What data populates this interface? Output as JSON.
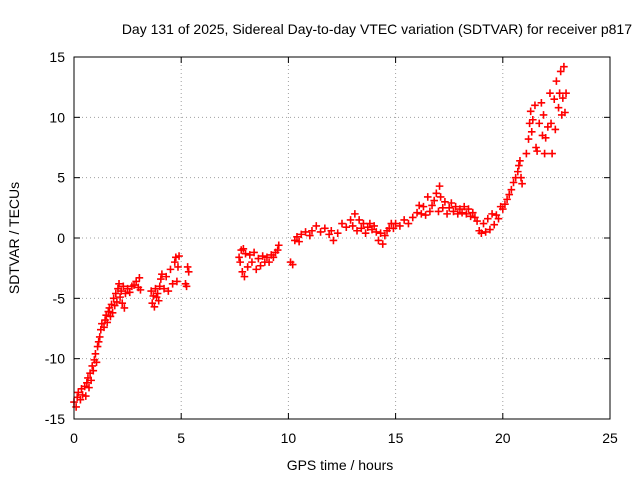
{
  "chart_data": {
    "type": "scatter",
    "title": "Day 131 of 2025, Sidereal Day-to-day VTEC variation (SDTVAR) for receiver p817",
    "xlabel": "GPS time / hours",
    "ylabel": "SDTVAR / TECUs",
    "xlim": [
      0,
      25
    ],
    "ylim": [
      -15,
      15
    ],
    "xticks": [
      0,
      5,
      10,
      15,
      20,
      25
    ],
    "yticks": [
      -15,
      -10,
      -5,
      0,
      5,
      10,
      15
    ],
    "grid": true,
    "marker": "plus",
    "color": "#ff0000",
    "series": [
      {
        "points": [
          [
            0.0,
            -13.6
          ],
          [
            0.1,
            -14.0
          ],
          [
            0.15,
            -13.2
          ],
          [
            0.2,
            -12.8
          ],
          [
            0.3,
            -13.4
          ],
          [
            0.35,
            -12.5
          ],
          [
            0.4,
            -13.0
          ],
          [
            0.5,
            -12.3
          ],
          [
            0.55,
            -13.1
          ],
          [
            0.6,
            -12.0
          ],
          [
            0.65,
            -11.6
          ],
          [
            0.7,
            -12.4
          ],
          [
            0.75,
            -11.2
          ],
          [
            0.8,
            -11.8
          ],
          [
            0.85,
            -10.6
          ],
          [
            0.9,
            -11.0
          ],
          [
            0.95,
            -10.1
          ],
          [
            1.0,
            -9.6
          ],
          [
            1.05,
            -10.3
          ],
          [
            1.1,
            -9.0
          ],
          [
            1.15,
            -8.6
          ],
          [
            1.2,
            -8.2
          ],
          [
            1.25,
            -7.6
          ],
          [
            1.3,
            -7.1
          ],
          [
            1.4,
            -7.4
          ],
          [
            1.45,
            -6.8
          ],
          [
            1.5,
            -6.4
          ],
          [
            1.55,
            -7.0
          ],
          [
            1.6,
            -6.1
          ],
          [
            1.65,
            -5.8
          ],
          [
            1.7,
            -6.5
          ],
          [
            1.75,
            -5.5
          ],
          [
            1.8,
            -6.2
          ],
          [
            1.85,
            -5.0
          ],
          [
            1.9,
            -5.6
          ],
          [
            1.95,
            -4.6
          ],
          [
            2.0,
            -5.3
          ],
          [
            2.05,
            -4.2
          ],
          [
            2.1,
            -3.8
          ],
          [
            2.15,
            -4.9
          ],
          [
            2.2,
            -4.4
          ],
          [
            2.25,
            -5.4
          ],
          [
            2.3,
            -4.0
          ],
          [
            2.35,
            -5.8
          ],
          [
            2.4,
            -4.6
          ],
          [
            2.5,
            -4.2
          ],
          [
            2.6,
            -4.5
          ],
          [
            2.7,
            -4.0
          ],
          [
            2.8,
            -3.9
          ],
          [
            2.9,
            -3.6
          ],
          [
            3.0,
            -4.1
          ],
          [
            3.05,
            -3.3
          ],
          [
            3.1,
            -4.3
          ],
          [
            3.6,
            -4.4
          ],
          [
            3.65,
            -5.4
          ],
          [
            3.7,
            -4.8
          ],
          [
            3.75,
            -5.7
          ],
          [
            3.8,
            -4.2
          ],
          [
            3.85,
            -4.9
          ],
          [
            3.9,
            -4.6
          ],
          [
            3.95,
            -5.2
          ],
          [
            4.0,
            -4.0
          ],
          [
            4.05,
            -3.4
          ],
          [
            4.1,
            -3.0
          ],
          [
            4.2,
            -4.2
          ],
          [
            4.3,
            -3.2
          ],
          [
            4.4,
            -4.4
          ],
          [
            4.5,
            -2.6
          ],
          [
            4.6,
            -3.8
          ],
          [
            4.7,
            -2.0
          ],
          [
            4.75,
            -1.6
          ],
          [
            4.8,
            -3.6
          ],
          [
            4.85,
            -2.4
          ],
          [
            4.9,
            -1.5
          ],
          [
            5.2,
            -3.8
          ],
          [
            5.25,
            -4.0
          ],
          [
            5.3,
            -2.4
          ],
          [
            5.35,
            -2.8
          ],
          [
            7.7,
            -1.6
          ],
          [
            7.75,
            -2.0
          ],
          [
            7.8,
            -1.0
          ],
          [
            7.85,
            -2.8
          ],
          [
            7.9,
            -0.9
          ],
          [
            7.95,
            -3.2
          ],
          [
            8.0,
            -1.3
          ],
          [
            8.1,
            -2.4
          ],
          [
            8.2,
            -1.4
          ],
          [
            8.3,
            -2.0
          ],
          [
            8.4,
            -1.2
          ],
          [
            8.5,
            -2.6
          ],
          [
            8.6,
            -1.7
          ],
          [
            8.7,
            -2.3
          ],
          [
            8.8,
            -1.5
          ],
          [
            8.9,
            -2.0
          ],
          [
            9.0,
            -1.6
          ],
          [
            9.1,
            -2.0
          ],
          [
            9.2,
            -1.4
          ],
          [
            9.3,
            -1.6
          ],
          [
            9.4,
            -1.2
          ],
          [
            9.5,
            -1.0
          ],
          [
            9.55,
            -0.6
          ],
          [
            10.1,
            -2.0
          ],
          [
            10.2,
            -2.2
          ],
          [
            10.3,
            -0.2
          ],
          [
            10.4,
            0.1
          ],
          [
            10.5,
            -0.3
          ],
          [
            10.6,
            0.3
          ],
          [
            10.8,
            0.5
          ],
          [
            11.0,
            0.2
          ],
          [
            11.1,
            0.6
          ],
          [
            11.3,
            1.0
          ],
          [
            11.5,
            0.5
          ],
          [
            11.7,
            0.8
          ],
          [
            11.9,
            0.3
          ],
          [
            12.0,
            0.6
          ],
          [
            12.1,
            -0.2
          ],
          [
            12.3,
            0.4
          ],
          [
            12.5,
            1.2
          ],
          [
            12.7,
            0.9
          ],
          [
            12.9,
            1.5
          ],
          [
            13.0,
            1.0
          ],
          [
            13.1,
            2.0
          ],
          [
            13.2,
            0.6
          ],
          [
            13.3,
            1.5
          ],
          [
            13.4,
            0.8
          ],
          [
            13.5,
            1.2
          ],
          [
            13.6,
            0.4
          ],
          [
            13.7,
            0.9
          ],
          [
            13.8,
            1.2
          ],
          [
            13.9,
            0.7
          ],
          [
            14.0,
            1.0
          ],
          [
            14.1,
            0.5
          ],
          [
            14.2,
            -0.2
          ],
          [
            14.3,
            0.4
          ],
          [
            14.4,
            -0.5
          ],
          [
            14.5,
            0.2
          ],
          [
            14.6,
            0.6
          ],
          [
            14.7,
            0.8
          ],
          [
            14.8,
            1.2
          ],
          [
            14.9,
            0.8
          ],
          [
            15.0,
            1.2
          ],
          [
            15.2,
            1.0
          ],
          [
            15.4,
            1.5
          ],
          [
            15.6,
            1.2
          ],
          [
            15.8,
            1.7
          ],
          [
            16.0,
            2.1
          ],
          [
            16.1,
            2.7
          ],
          [
            16.2,
            2.0
          ],
          [
            16.3,
            2.6
          ],
          [
            16.4,
            1.9
          ],
          [
            16.5,
            3.4
          ],
          [
            16.6,
            2.2
          ],
          [
            16.7,
            2.7
          ],
          [
            16.8,
            3.1
          ],
          [
            16.9,
            3.7
          ],
          [
            17.0,
            2.2
          ],
          [
            17.05,
            4.3
          ],
          [
            17.1,
            3.4
          ],
          [
            17.2,
            2.5
          ],
          [
            17.3,
            3.0
          ],
          [
            17.4,
            2.0
          ],
          [
            17.5,
            2.5
          ],
          [
            17.6,
            2.9
          ],
          [
            17.7,
            2.2
          ],
          [
            17.8,
            2.6
          ],
          [
            17.9,
            2.0
          ],
          [
            18.0,
            2.4
          ],
          [
            18.1,
            2.1
          ],
          [
            18.2,
            2.6
          ],
          [
            18.3,
            2.0
          ],
          [
            18.4,
            2.4
          ],
          [
            18.5,
            1.8
          ],
          [
            18.6,
            2.1
          ],
          [
            18.7,
            1.7
          ],
          [
            18.8,
            1.4
          ],
          [
            18.9,
            0.6
          ],
          [
            19.0,
            0.4
          ],
          [
            19.1,
            1.2
          ],
          [
            19.2,
            0.5
          ],
          [
            19.3,
            1.6
          ],
          [
            19.4,
            0.7
          ],
          [
            19.5,
            2.0
          ],
          [
            19.6,
            1.1
          ],
          [
            19.7,
            1.9
          ],
          [
            19.8,
            1.6
          ],
          [
            19.9,
            2.6
          ],
          [
            20.0,
            2.4
          ],
          [
            20.1,
            2.8
          ],
          [
            20.2,
            3.2
          ],
          [
            20.3,
            3.6
          ],
          [
            20.4,
            4.0
          ],
          [
            20.5,
            4.6
          ],
          [
            20.6,
            5.0
          ],
          [
            20.7,
            5.5
          ],
          [
            20.75,
            6.0
          ],
          [
            20.8,
            6.4
          ],
          [
            20.85,
            5.0
          ],
          [
            20.9,
            4.5
          ],
          [
            21.1,
            7.0
          ],
          [
            21.2,
            8.2
          ],
          [
            21.25,
            9.5
          ],
          [
            21.3,
            10.5
          ],
          [
            21.35,
            8.8
          ],
          [
            21.4,
            9.8
          ],
          [
            21.5,
            11.0
          ],
          [
            21.55,
            7.5
          ],
          [
            21.6,
            7.2
          ],
          [
            21.7,
            9.5
          ],
          [
            21.8,
            11.2
          ],
          [
            21.85,
            8.5
          ],
          [
            21.9,
            10.2
          ],
          [
            21.95,
            7.0
          ],
          [
            22.0,
            8.3
          ],
          [
            22.1,
            9.2
          ],
          [
            22.2,
            12.0
          ],
          [
            22.25,
            9.5
          ],
          [
            22.3,
            7.0
          ],
          [
            22.4,
            11.5
          ],
          [
            22.45,
            9.0
          ],
          [
            22.5,
            13.0
          ],
          [
            22.6,
            10.8
          ],
          [
            22.65,
            12.0
          ],
          [
            22.7,
            13.8
          ],
          [
            22.75,
            10.2
          ],
          [
            22.8,
            11.6
          ],
          [
            22.85,
            14.2
          ],
          [
            22.9,
            10.4
          ],
          [
            22.95,
            12.0
          ]
        ]
      }
    ]
  }
}
